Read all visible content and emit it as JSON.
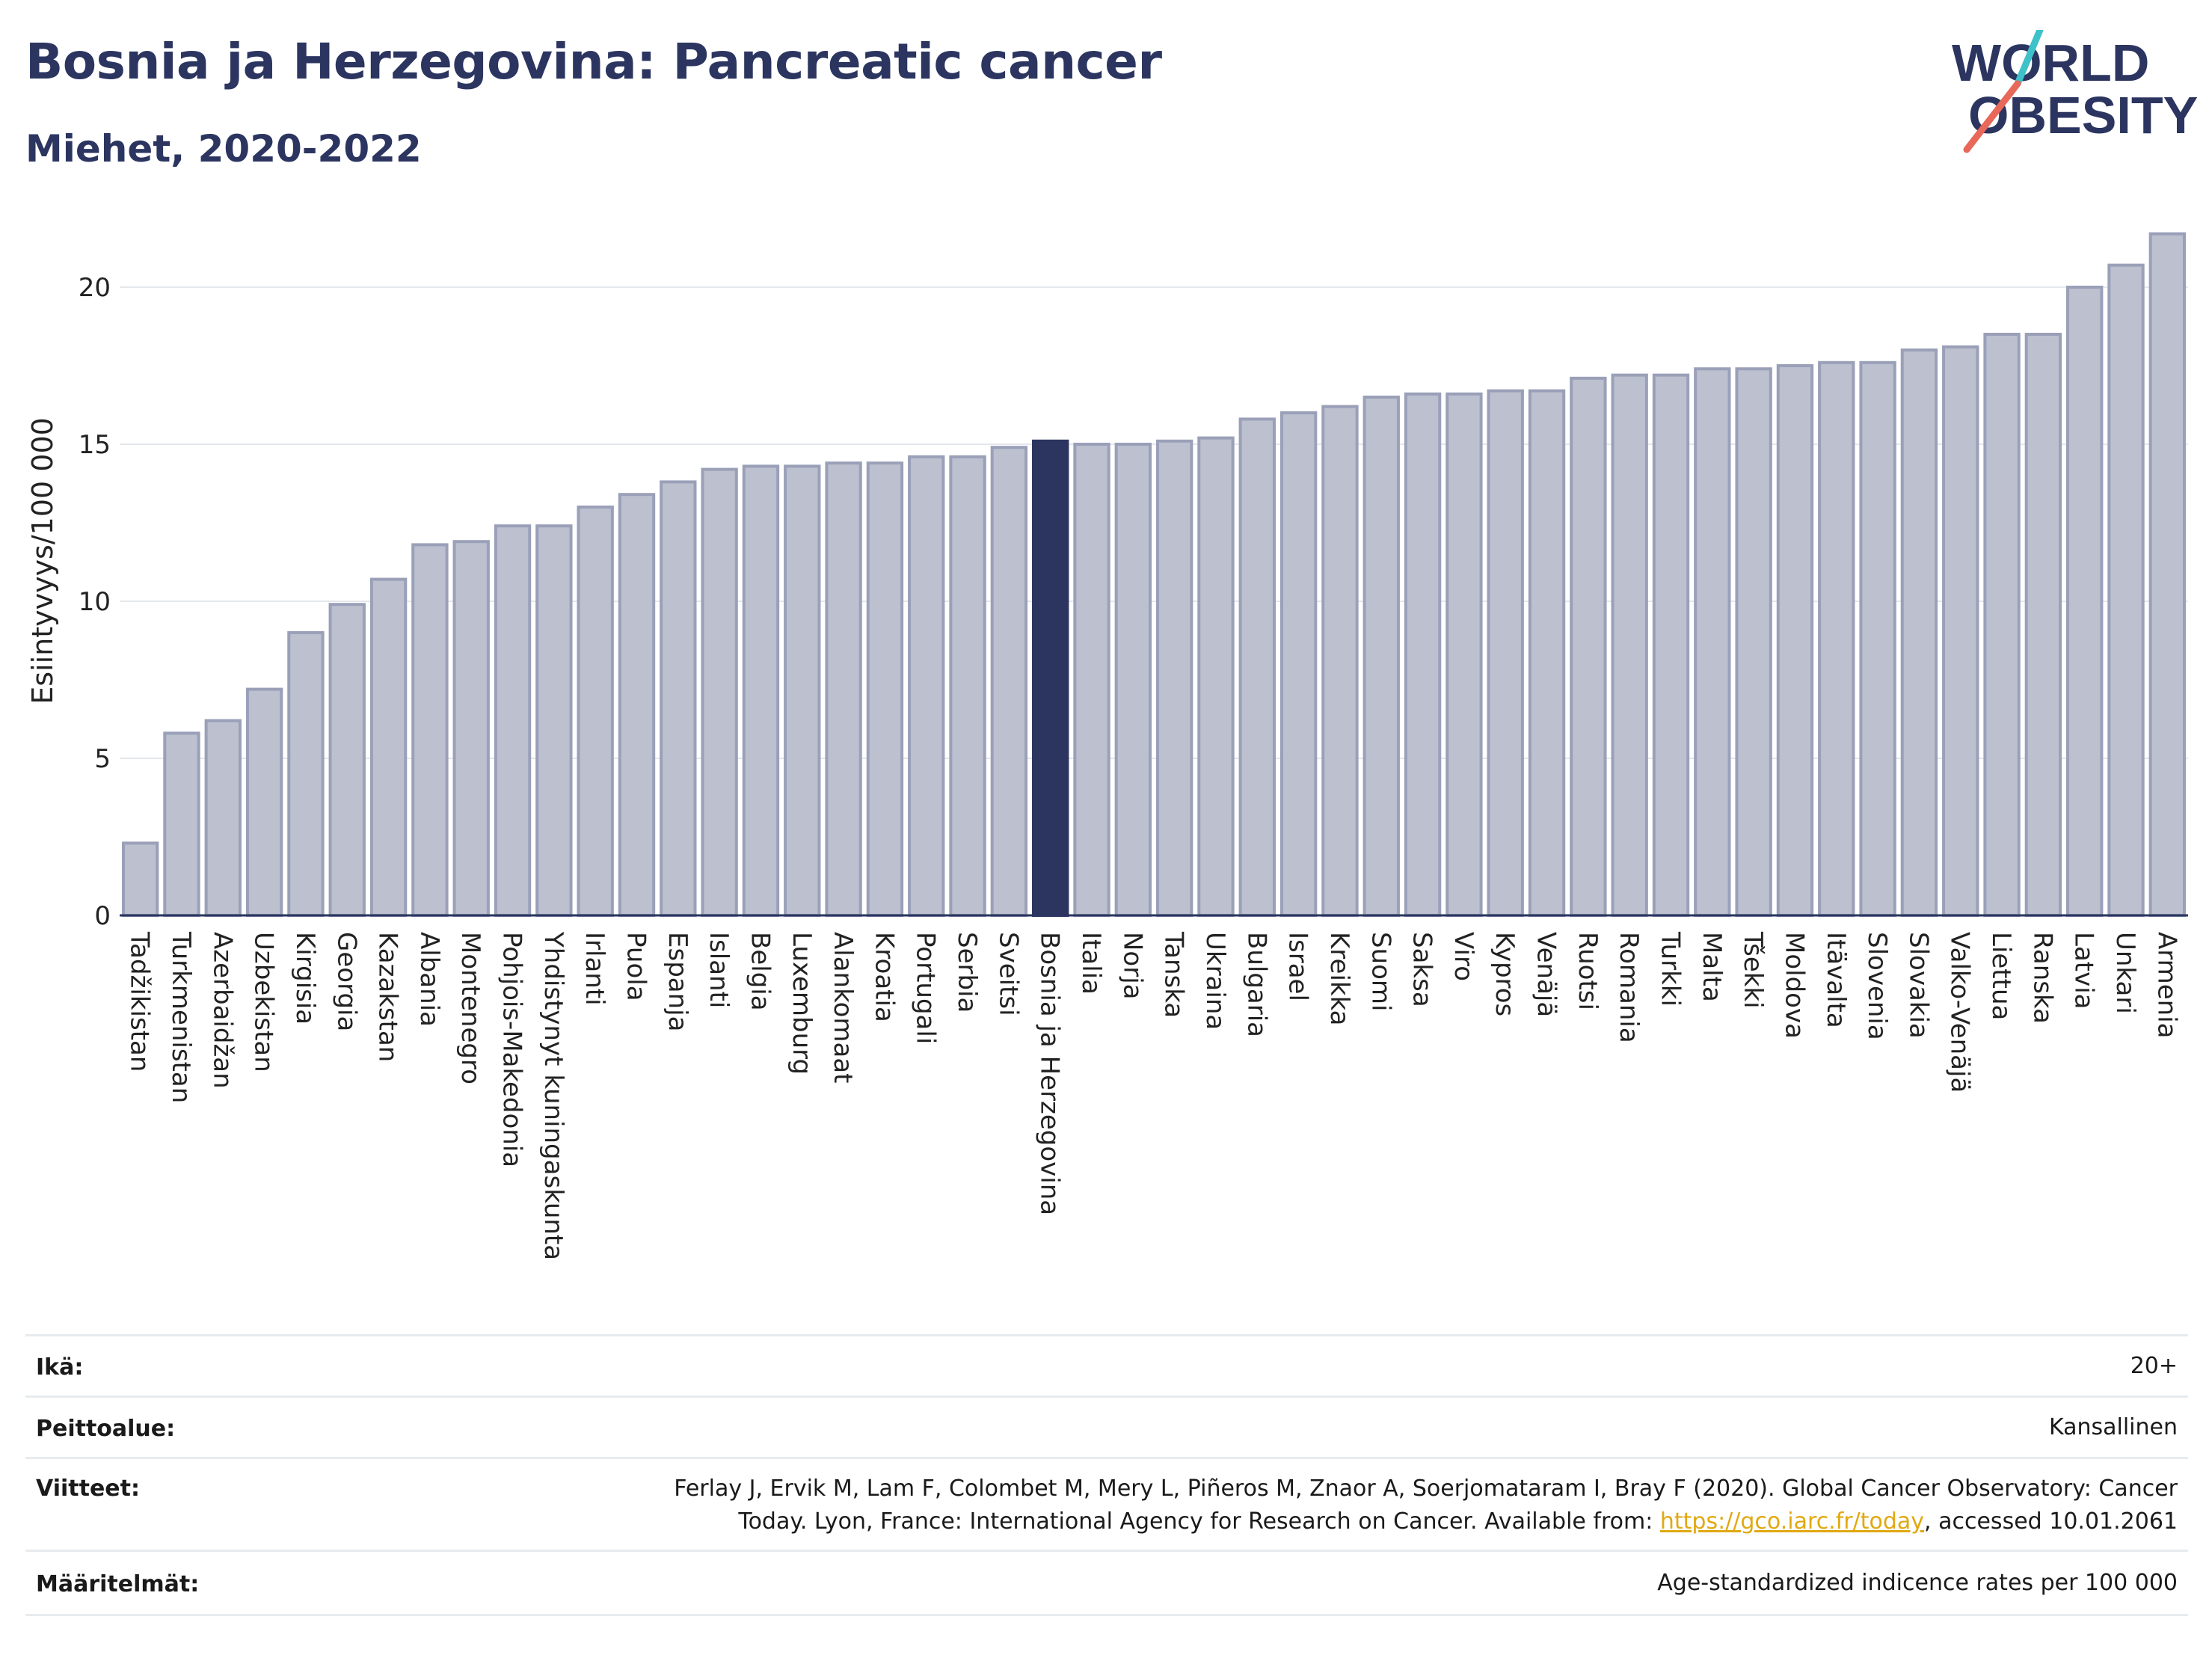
{
  "header": {
    "title": "Bosnia ja Herzegovina: Pancreatic cancer",
    "subtitle": "Miehet, 2020-2022"
  },
  "logo": {
    "line1": "WORLD",
    "line2": "OBESITY",
    "accent_colors": [
      "#3fc1c9",
      "#e8685a"
    ]
  },
  "colors": {
    "bar": "#bcc0cf",
    "bar_border": "#9aa0b8",
    "highlight": "#2b3560",
    "text_dark": "#2b3560"
  },
  "chart_data": {
    "type": "bar",
    "title": "Bosnia ja Herzegovina: Pancreatic cancer",
    "subtitle": "Miehet, 2020-2022",
    "ylabel": "Esiintyvyys/100 000",
    "xlabel": "",
    "ylim": [
      0,
      22
    ],
    "yticks": [
      0,
      5,
      10,
      15,
      20
    ],
    "grid": true,
    "highlight": "Bosnia ja Herzegovina",
    "categories": [
      "Tadžikistan",
      "Turkmenistan",
      "Azerbaidžan",
      "Uzbekistan",
      "Kirgisia",
      "Georgia",
      "Kazakstan",
      "Albania",
      "Montenegro",
      "Pohjois-Makedonia",
      "Yhdistynyt kuningaskunta",
      "Irlanti",
      "Puola",
      "Espanja",
      "Islanti",
      "Belgia",
      "Luxemburg",
      "Alankomaat",
      "Kroatia",
      "Portugali",
      "Serbia",
      "Sveitsi",
      "Bosnia ja Herzegovina",
      "Italia",
      "Norja",
      "Tanska",
      "Ukraina",
      "Bulgaria",
      "Israel",
      "Kreikka",
      "Suomi",
      "Saksa",
      "Viro",
      "Kypros",
      "Venäjä",
      "Ruotsi",
      "Romania",
      "Turkki",
      "Malta",
      "Tšekki",
      "Moldova",
      "Itävalta",
      "Slovenia",
      "Slovakia",
      "Valko-Venäjä",
      "Liettua",
      "Ranska",
      "Latvia",
      "Unkari",
      "Armenia"
    ],
    "values": [
      2.3,
      5.8,
      6.2,
      7.2,
      9.0,
      9.9,
      10.7,
      11.8,
      11.9,
      12.4,
      12.4,
      13.0,
      13.4,
      13.8,
      14.2,
      14.3,
      14.3,
      14.4,
      14.4,
      14.6,
      14.6,
      14.9,
      15.1,
      15.0,
      15.0,
      15.1,
      15.2,
      15.8,
      16.0,
      16.2,
      16.5,
      16.6,
      16.6,
      16.7,
      16.7,
      17.1,
      17.2,
      17.2,
      17.4,
      17.4,
      17.5,
      17.6,
      17.6,
      18.0,
      18.1,
      18.5,
      18.5,
      20.0,
      20.7,
      21.7
    ]
  },
  "meta": {
    "age_label": "Ikä:",
    "age_value": "20+",
    "coverage_label": "Peittoalue:",
    "coverage_value": "Kansallinen",
    "refs_label": "Viitteet:",
    "refs_line1": "Ferlay J, Ervik M, Lam F, Colombet M, Mery L, Piñeros M, Znaor A, Soerjomataram I, Bray F (2020). Global Cancer Observatory: Cancer",
    "refs_line2_pre": "Today. Lyon, France: International Agency for Research on Cancer. Available from: ",
    "refs_link": "https://gco.iarc.fr/today",
    "refs_line2_post": ", accessed 10.01.2061",
    "defs_label": "Määritelmät:",
    "defs_value": "Age-standardized indicence rates per 100 000"
  }
}
